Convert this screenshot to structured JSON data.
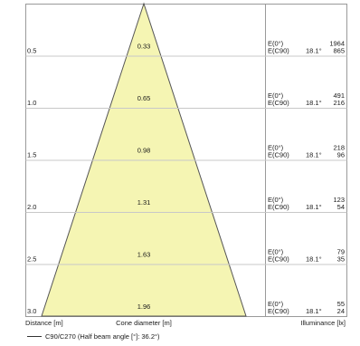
{
  "chart_data": {
    "type": "cone-diagram",
    "cone_color": "#f5f5b3",
    "cone_stroke": "#555555",
    "grid_color": "#c8c8c8",
    "frame_color": "#9a9a9a",
    "rows": [
      {
        "distance": "0.5",
        "diameter": "0.33",
        "e0_label": "E(0°)",
        "ec90_label": "E(C90)",
        "angle": "18.1°",
        "e0": "1964",
        "ec90": "865"
      },
      {
        "distance": "1.0",
        "diameter": "0.65",
        "e0_label": "E(0°)",
        "ec90_label": "E(C90)",
        "angle": "18.1°",
        "e0": "491",
        "ec90": "216"
      },
      {
        "distance": "1.5",
        "diameter": "0.98",
        "e0_label": "E(0°)",
        "ec90_label": "E(C90)",
        "angle": "18.1°",
        "e0": "218",
        "ec90": "96"
      },
      {
        "distance": "2.0",
        "diameter": "1.31",
        "e0_label": "E(0°)",
        "ec90_label": "E(C90)",
        "angle": "18.1°",
        "e0": "123",
        "ec90": "54"
      },
      {
        "distance": "2.5",
        "diameter": "1.63",
        "e0_label": "E(0°)",
        "ec90_label": "E(C90)",
        "angle": "18.1°",
        "e0": "79",
        "ec90": "35"
      },
      {
        "distance": "3.0",
        "diameter": "1.96",
        "e0_label": "E(0°)",
        "ec90_label": "E(C90)",
        "angle": "18.1°",
        "e0": "55",
        "ec90": "24"
      }
    ],
    "xlabel_distance": "Distance [m]",
    "xlabel_diameter": "Cone diameter [m]",
    "xlabel_illuminance": "Illuminance [lx]",
    "legend": "C90/C270 (Half beam angle [°]: 36.2°)"
  }
}
